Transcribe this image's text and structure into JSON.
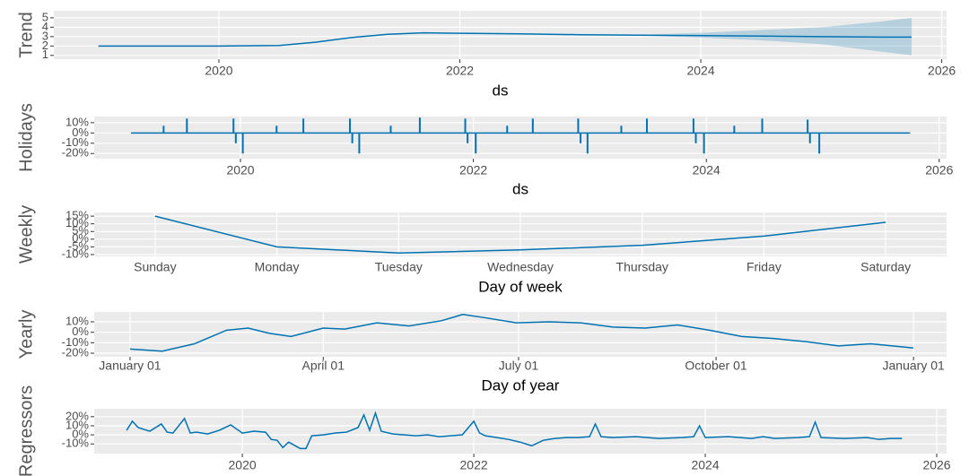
{
  "chart_data": [
    {
      "type": "line",
      "ylabel": "Trend",
      "xlabel": "ds",
      "color": "#0072B2",
      "band_color": "#0072B2",
      "grid": true,
      "x": [
        2019.0,
        2019.5,
        2020.0,
        2020.5,
        2020.8,
        2021.1,
        2021.4,
        2021.7,
        2022.0,
        2022.5,
        2023.0,
        2023.5,
        2024.0,
        2024.5,
        2025.0,
        2025.5,
        2025.75
      ],
      "values": [
        2.0,
        2.0,
        2.0,
        2.05,
        2.4,
        2.9,
        3.25,
        3.4,
        3.35,
        3.3,
        3.2,
        3.15,
        3.1,
        3.05,
        3.0,
        2.95,
        2.95
      ],
      "band_lower": [
        null,
        null,
        null,
        null,
        null,
        null,
        null,
        null,
        null,
        null,
        null,
        3.1,
        2.9,
        2.6,
        2.2,
        1.4,
        1.0
      ],
      "band_upper": [
        null,
        null,
        null,
        null,
        null,
        null,
        null,
        null,
        null,
        null,
        null,
        3.2,
        3.4,
        3.7,
        4.0,
        4.6,
        5.0
      ],
      "xlim": [
        2018.63,
        2026.04
      ],
      "xticks": [
        2020,
        2022,
        2024,
        2026
      ],
      "ylim": [
        0.6,
        5.75
      ],
      "yticks": [
        1,
        2,
        3,
        4,
        5
      ]
    },
    {
      "type": "spike",
      "ylabel": "Holidays",
      "xlabel": "ds",
      "color": "#0072B2",
      "grid": true,
      "x": [
        2019.06,
        2019.34,
        2019.54,
        2019.94,
        2019.96,
        2020.02,
        2020.31,
        2020.54,
        2020.94,
        2020.96,
        2021.02,
        2021.29,
        2021.54,
        2021.93,
        2021.95,
        2022.02,
        2022.29,
        2022.51,
        2022.9,
        2022.92,
        2022.98,
        2023.27,
        2023.49,
        2023.89,
        2023.91,
        2023.98,
        2024.24,
        2024.48,
        2024.87,
        2024.89,
        2024.97,
        2025.75
      ],
      "values": [
        0,
        7,
        14,
        14,
        -10,
        -20,
        7,
        14,
        14,
        -10,
        -20,
        7,
        15,
        14,
        -10,
        -20,
        7,
        14,
        14,
        -10,
        -20,
        7,
        14,
        14,
        -10,
        -20,
        7,
        14,
        13,
        -10,
        -20,
        0
      ],
      "xlim": [
        2018.744,
        2026.063
      ],
      "xticks": [
        2020,
        2022,
        2024,
        2026
      ],
      "ylim": [
        -25,
        16
      ],
      "yticks": [
        {
          "value": 10,
          "label": "10%"
        },
        {
          "value": 0,
          "label": "0%"
        },
        {
          "value": -10,
          "label": "-10%"
        },
        {
          "value": -20,
          "label": "-20%"
        }
      ]
    },
    {
      "type": "line",
      "ylabel": "Weekly",
      "xlabel": "Day of week",
      "color": "#0072B2",
      "grid": true,
      "categories": [
        "Sunday",
        "Monday",
        "Tuesday",
        "Wednesday",
        "Thursday",
        "Friday",
        "Saturday"
      ],
      "values": [
        15,
        -5,
        -9,
        -7,
        -4,
        2,
        11
      ],
      "ylim": [
        -11.2,
        17.4
      ],
      "yticks": [
        {
          "value": 15,
          "label": "15%"
        },
        {
          "value": 10,
          "label": "10%"
        },
        {
          "value": 5,
          "label": "5%"
        },
        {
          "value": 0,
          "label": "0%"
        },
        {
          "value": -5,
          "label": "-5%"
        },
        {
          "value": -10,
          "label": "-10%"
        }
      ]
    },
    {
      "type": "line",
      "ylabel": "Yearly",
      "xlabel": "Day of year",
      "color": "#0072B2",
      "grid": true,
      "x": [
        0,
        15,
        30,
        45,
        55,
        65,
        75,
        90,
        100,
        115,
        130,
        145,
        155,
        165,
        180,
        195,
        210,
        225,
        240,
        255,
        270,
        285,
        300,
        315,
        330,
        345,
        360,
        365
      ],
      "values": [
        -16,
        -18,
        -11,
        2,
        4,
        -1,
        -4,
        4,
        3,
        9,
        6,
        11,
        17,
        14,
        9,
        10,
        9,
        5,
        4,
        7,
        2,
        -4,
        -6,
        -9,
        -13,
        -11,
        -14,
        -15
      ],
      "xlim": [
        -16.7,
        380.4
      ],
      "xticks": [
        {
          "value": 0,
          "label": "January 01"
        },
        {
          "value": 90,
          "label": "April 01"
        },
        {
          "value": 181,
          "label": "July 01"
        },
        {
          "value": 273,
          "label": "October 01"
        },
        {
          "value": 365,
          "label": "January 01"
        }
      ],
      "ylim": [
        -23.4,
        19.4
      ],
      "yticks": [
        {
          "value": 10,
          "label": "10%"
        },
        {
          "value": 0,
          "label": "0%"
        },
        {
          "value": -10,
          "label": "-10%"
        },
        {
          "value": -20,
          "label": "-20%"
        }
      ]
    },
    {
      "type": "line",
      "ylabel": "Regressors",
      "color": "#0072B2",
      "grid": true,
      "x": [
        2019.0,
        2019.05,
        2019.1,
        2019.2,
        2019.3,
        2019.35,
        2019.4,
        2019.5,
        2019.55,
        2019.6,
        2019.7,
        2019.8,
        2019.9,
        2020.0,
        2020.1,
        2020.2,
        2020.25,
        2020.3,
        2020.35,
        2020.4,
        2020.5,
        2020.55,
        2020.6,
        2020.7,
        2020.8,
        2020.9,
        2021.0,
        2021.05,
        2021.1,
        2021.15,
        2021.2,
        2021.3,
        2021.4,
        2021.5,
        2021.6,
        2021.7,
        2021.8,
        2021.9,
        2022.0,
        2022.05,
        2022.1,
        2022.2,
        2022.3,
        2022.4,
        2022.5,
        2022.6,
        2022.7,
        2022.8,
        2022.9,
        2023.0,
        2023.05,
        2023.1,
        2023.2,
        2023.4,
        2023.6,
        2023.8,
        2023.9,
        2023.95,
        2024.0,
        2024.2,
        2024.4,
        2024.5,
        2024.6,
        2024.8,
        2024.9,
        2024.95,
        2025.0,
        2025.2,
        2025.4,
        2025.5,
        2025.6,
        2025.7
      ],
      "values": [
        5,
        15,
        8,
        4,
        12,
        3,
        2,
        18,
        2,
        3,
        1,
        5,
        11,
        2,
        4,
        3,
        -5,
        -6,
        -14,
        -8,
        -15,
        -15,
        -1,
        0,
        2,
        3,
        8,
        22,
        5,
        24,
        4,
        1,
        0,
        -1,
        0,
        -2,
        -1,
        0,
        15,
        2,
        -1,
        -3,
        -5,
        -8,
        -12,
        -6,
        -4,
        -3,
        -3,
        -2,
        12,
        -2,
        -3,
        -2,
        -4,
        -3,
        -2,
        10,
        -3,
        -2,
        -4,
        -2,
        -4,
        -3,
        -2,
        14,
        -3,
        -4,
        -3,
        -5,
        -4,
        -4
      ],
      "xlim": [
        2018.72,
        2026.085
      ],
      "xticks": [
        2020,
        2022,
        2024,
        2026
      ],
      "ylim": [
        -20.6,
        28.7
      ],
      "yticks": [
        {
          "value": 20,
          "label": "20%"
        },
        {
          "value": 10,
          "label": "10%"
        },
        {
          "value": 0,
          "label": "0%"
        },
        {
          "value": -10,
          "label": "-10%"
        }
      ]
    }
  ]
}
